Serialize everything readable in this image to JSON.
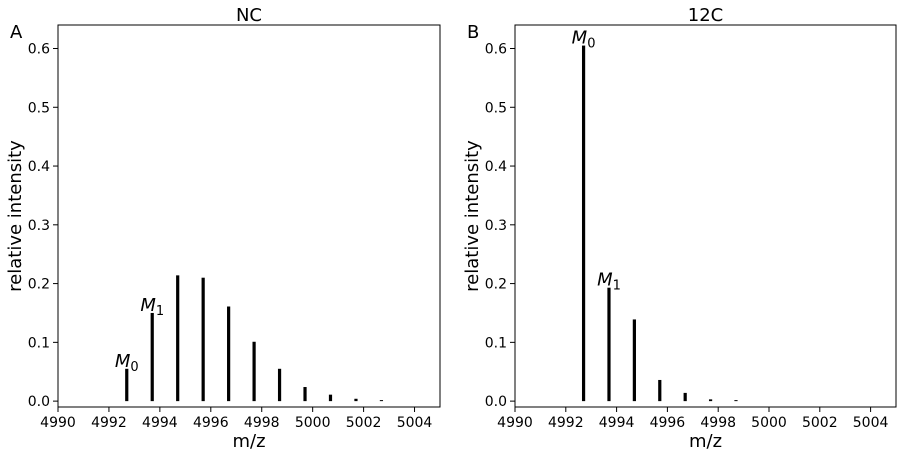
{
  "chart_data": [
    {
      "type": "bar",
      "panel_letter": "A",
      "title": "NC",
      "xlabel": "m/z",
      "ylabel": "relative intensity",
      "xlim": [
        4990,
        5005
      ],
      "ylim": [
        -0.01,
        0.64
      ],
      "xticks": [
        4990,
        4992,
        4994,
        4996,
        4998,
        5000,
        5002,
        5004
      ],
      "yticks": [
        0.0,
        0.1,
        0.2,
        0.3,
        0.4,
        0.5,
        0.6
      ],
      "ytick_labels": [
        "0.0",
        "0.1",
        "0.2",
        "0.3",
        "0.4",
        "0.5",
        "0.6"
      ],
      "x": [
        4992.7,
        4993.7,
        4994.7,
        4995.7,
        4996.7,
        4997.7,
        4998.7,
        4999.7,
        5000.7,
        5001.7,
        5002.7
      ],
      "values": [
        0.055,
        0.15,
        0.214,
        0.21,
        0.161,
        0.101,
        0.055,
        0.024,
        0.011,
        0.004,
        0.001
      ],
      "annotations": [
        {
          "base": "M",
          "sub": "0",
          "index": 0
        },
        {
          "base": "M",
          "sub": "1",
          "index": 1
        }
      ]
    },
    {
      "type": "bar",
      "panel_letter": "B",
      "title": "12C",
      "xlabel": "m/z",
      "ylabel": "relative intensity",
      "xlim": [
        4990,
        5005
      ],
      "ylim": [
        -0.01,
        0.64
      ],
      "xticks": [
        4990,
        4992,
        4994,
        4996,
        4998,
        5000,
        5002,
        5004
      ],
      "yticks": [
        0.0,
        0.1,
        0.2,
        0.3,
        0.4,
        0.5,
        0.6
      ],
      "ytick_labels": [
        "0.0",
        "0.1",
        "0.2",
        "0.3",
        "0.4",
        "0.5",
        "0.6"
      ],
      "x": [
        4992.7,
        4993.7,
        4994.7,
        4995.7,
        4996.7,
        4997.7,
        4998.7
      ],
      "values": [
        0.605,
        0.193,
        0.139,
        0.036,
        0.014,
        0.003,
        0.001
      ],
      "annotations": [
        {
          "base": "M",
          "sub": "0",
          "index": 0
        },
        {
          "base": "M",
          "sub": "1",
          "index": 1
        }
      ]
    }
  ]
}
